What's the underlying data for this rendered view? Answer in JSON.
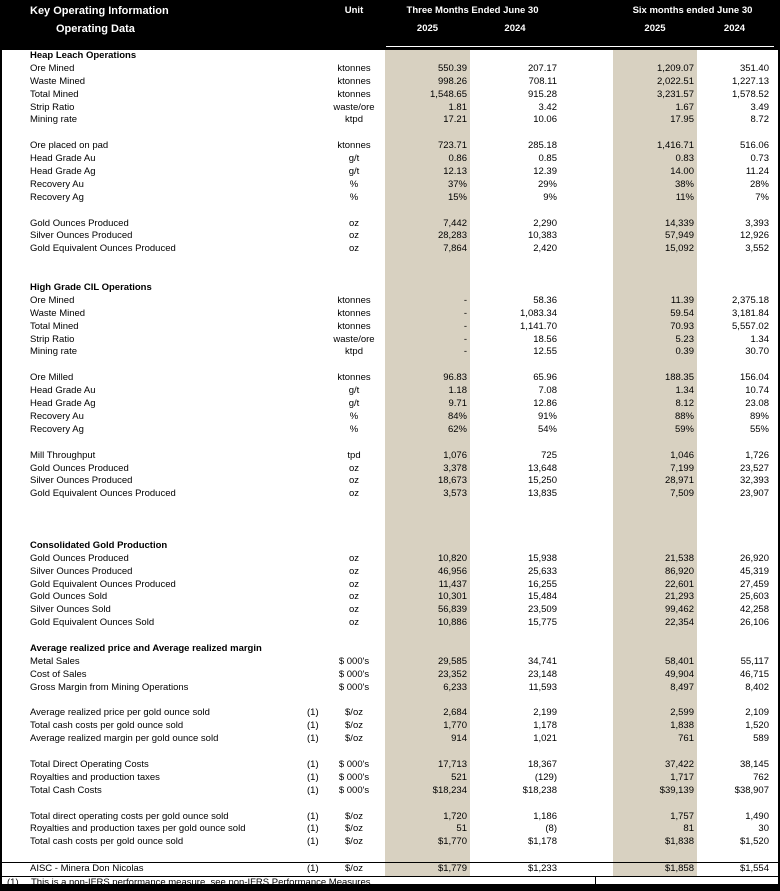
{
  "header": {
    "title": "Key Operating Information",
    "subtitle": "Operating Data",
    "unit_label": "Unit",
    "group1": "Three Months Ended June 30",
    "group2": "Six months ended June 30",
    "years": [
      "2025",
      "2024",
      "2025",
      "2024"
    ]
  },
  "colors": {
    "header_bg": "#000000",
    "header_text": "#ffffff",
    "highlight_column": "#d8d1c1"
  },
  "table": {
    "columns": [
      "Label",
      "Note",
      "Unit",
      "Three Months Ended June 30 2025",
      "Three Months Ended June 30 2024",
      "Six months ended June 30 2025",
      "Six months ended June 30 2024"
    ],
    "rows": [
      {
        "type": "section",
        "label": "Heap Leach Operations"
      },
      {
        "type": "data",
        "label": "Ore Mined",
        "unit": "ktonnes",
        "v": [
          "550.39",
          "207.17",
          "1,209.07",
          "351.40"
        ]
      },
      {
        "type": "data",
        "label": "Waste Mined",
        "unit": "ktonnes",
        "v": [
          "998.26",
          "708.11",
          "2,022.51",
          "1,227.13"
        ]
      },
      {
        "type": "data",
        "label": "Total Mined",
        "unit": "ktonnes",
        "v": [
          "1,548.65",
          "915.28",
          "3,231.57",
          "1,578.52"
        ]
      },
      {
        "type": "data",
        "label": "Strip Ratio",
        "unit": "waste/ore",
        "v": [
          "1.81",
          "3.42",
          "1.67",
          "3.49"
        ]
      },
      {
        "type": "data",
        "label": "Mining rate",
        "unit": "ktpd",
        "v": [
          "17.21",
          "10.06",
          "17.95",
          "8.72"
        ]
      },
      {
        "type": "blank"
      },
      {
        "type": "data",
        "label": "Ore placed on pad",
        "unit": "ktonnes",
        "v": [
          "723.71",
          "285.18",
          "1,416.71",
          "516.06"
        ]
      },
      {
        "type": "data",
        "label": "Head Grade Au",
        "unit": "g/t",
        "v": [
          "0.86",
          "0.85",
          "0.83",
          "0.73"
        ]
      },
      {
        "type": "data",
        "label": "Head Grade Ag",
        "unit": "g/t",
        "v": [
          "12.13",
          "12.39",
          "14.00",
          "11.24"
        ]
      },
      {
        "type": "data",
        "label": "Recovery Au",
        "unit": "%",
        "v": [
          "37%",
          "29%",
          "38%",
          "28%"
        ]
      },
      {
        "type": "data",
        "label": "Recovery Ag",
        "unit": "%",
        "v": [
          "15%",
          "9%",
          "11%",
          "7%"
        ]
      },
      {
        "type": "blank"
      },
      {
        "type": "data",
        "label": "Gold Ounces Produced",
        "unit": "oz",
        "v": [
          "7,442",
          "2,290",
          "14,339",
          "3,393"
        ]
      },
      {
        "type": "data",
        "label": "Silver Ounces Produced",
        "unit": "oz",
        "v": [
          "28,283",
          "10,383",
          "57,949",
          "12,926"
        ]
      },
      {
        "type": "data",
        "label": "Gold Equivalent Ounces Produced",
        "unit": "oz",
        "v": [
          "7,864",
          "2,420",
          "15,092",
          "3,552"
        ]
      },
      {
        "type": "blank"
      },
      {
        "type": "blank"
      },
      {
        "type": "section",
        "label": "High Grade CIL Operations"
      },
      {
        "type": "data",
        "label": "Ore Mined",
        "unit": "ktonnes",
        "v": [
          "-",
          "58.36",
          "11.39",
          "2,375.18"
        ]
      },
      {
        "type": "data",
        "label": "Waste Mined",
        "unit": "ktonnes",
        "v": [
          "-",
          "1,083.34",
          "59.54",
          "3,181.84"
        ]
      },
      {
        "type": "data",
        "label": "Total Mined",
        "unit": "ktonnes",
        "v": [
          "-",
          "1,141.70",
          "70.93",
          "5,557.02"
        ]
      },
      {
        "type": "data",
        "label": "Strip Ratio",
        "unit": "waste/ore",
        "v": [
          "-",
          "18.56",
          "5.23",
          "1.34"
        ]
      },
      {
        "type": "data",
        "label": "Mining rate",
        "unit": "ktpd",
        "v": [
          "-",
          "12.55",
          "0.39",
          "30.70"
        ]
      },
      {
        "type": "blank"
      },
      {
        "type": "data",
        "label": "Ore Milled",
        "unit": "ktonnes",
        "v": [
          "96.83",
          "65.96",
          "188.35",
          "156.04"
        ]
      },
      {
        "type": "data",
        "label": "Head Grade Au",
        "unit": "g/t",
        "v": [
          "1.18",
          "7.08",
          "1.34",
          "10.74"
        ]
      },
      {
        "type": "data",
        "label": "Head Grade Ag",
        "unit": "g/t",
        "v": [
          "9.71",
          "12.86",
          "8.12",
          "23.08"
        ]
      },
      {
        "type": "data",
        "label": "Recovery Au",
        "unit": "%",
        "v": [
          "84%",
          "91%",
          "88%",
          "89%"
        ]
      },
      {
        "type": "data",
        "label": "Recovery Ag",
        "unit": "%",
        "v": [
          "62%",
          "54%",
          "59%",
          "55%"
        ]
      },
      {
        "type": "blank"
      },
      {
        "type": "data",
        "label": "Mill Throughput",
        "unit": "tpd",
        "v": [
          "1,076",
          "725",
          "1,046",
          "1,726"
        ]
      },
      {
        "type": "data",
        "label": "Gold Ounces Produced",
        "unit": "oz",
        "v": [
          "3,378",
          "13,648",
          "7,199",
          "23,527"
        ]
      },
      {
        "type": "data",
        "label": "Silver Ounces Produced",
        "unit": "oz",
        "v": [
          "18,673",
          "15,250",
          "28,971",
          "32,393"
        ]
      },
      {
        "type": "data",
        "label": "Gold Equivalent Ounces Produced",
        "unit": "oz",
        "v": [
          "3,573",
          "13,835",
          "7,509",
          "23,907"
        ]
      },
      {
        "type": "blank"
      },
      {
        "type": "blank"
      },
      {
        "type": "blank"
      },
      {
        "type": "section",
        "label": "Consolidated Gold Production"
      },
      {
        "type": "data",
        "label": "Gold Ounces Produced",
        "unit": "oz",
        "v": [
          "10,820",
          "15,938",
          "21,538",
          "26,920"
        ]
      },
      {
        "type": "data",
        "label": "Silver Ounces Produced",
        "unit": "oz",
        "v": [
          "46,956",
          "25,633",
          "86,920",
          "45,319"
        ]
      },
      {
        "type": "data",
        "label": "Gold Equivalent Ounces Produced",
        "unit": "oz",
        "v": [
          "11,437",
          "16,255",
          "22,601",
          "27,459"
        ]
      },
      {
        "type": "data",
        "label": "Gold Ounces Sold",
        "unit": "oz",
        "v": [
          "10,301",
          "15,484",
          "21,293",
          "25,603"
        ]
      },
      {
        "type": "data",
        "label": "Silver Ounces Sold",
        "unit": "oz",
        "v": [
          "56,839",
          "23,509",
          "99,462",
          "42,258"
        ]
      },
      {
        "type": "data",
        "label": "Gold Equivalent Ounces Sold",
        "unit": "oz",
        "v": [
          "10,886",
          "15,775",
          "22,354",
          "26,106"
        ]
      },
      {
        "type": "blank"
      },
      {
        "type": "section",
        "label": "Average realized price and Average realized margin"
      },
      {
        "type": "data",
        "label": "Metal Sales",
        "unit": "$ 000's",
        "v": [
          "29,585",
          "34,741",
          "58,401",
          "55,117"
        ]
      },
      {
        "type": "data",
        "label": "Cost of Sales",
        "unit": "$ 000's",
        "v": [
          "23,352",
          "23,148",
          "49,904",
          "46,715"
        ]
      },
      {
        "type": "data",
        "label": "Gross Margin from Mining Operations",
        "unit": "$ 000's",
        "v": [
          "6,233",
          "11,593",
          "8,497",
          "8,402"
        ]
      },
      {
        "type": "blank"
      },
      {
        "type": "data",
        "label": "Average realized price per gold ounce sold",
        "note": "(1)",
        "unit": "$/oz",
        "v": [
          "2,684",
          "2,199",
          "2,599",
          "2,109"
        ]
      },
      {
        "type": "data",
        "label": "Total cash costs per gold ounce sold",
        "note": "(1)",
        "unit": "$/oz",
        "v": [
          "1,770",
          "1,178",
          "1,838",
          "1,520"
        ]
      },
      {
        "type": "data",
        "label": "Average realized margin per gold ounce sold",
        "note": "(1)",
        "unit": "$/oz",
        "v": [
          "914",
          "1,021",
          "761",
          "589"
        ]
      },
      {
        "type": "blank"
      },
      {
        "type": "data",
        "label": "Total Direct Operating Costs",
        "note": "(1)",
        "unit": "$ 000's",
        "v": [
          "17,713",
          "18,367",
          "37,422",
          "38,145"
        ]
      },
      {
        "type": "data",
        "label": "Royalties and production taxes",
        "note": "(1)",
        "unit": "$ 000's",
        "v": [
          "521",
          "(129)",
          "1,717",
          "762"
        ]
      },
      {
        "type": "data",
        "label": "Total Cash Costs",
        "note": "(1)",
        "unit": "$ 000's",
        "v": [
          "$18,234",
          "$18,238",
          "$39,139",
          "$38,907"
        ]
      },
      {
        "type": "blank"
      },
      {
        "type": "data",
        "label": "Total direct operating costs per gold ounce sold",
        "note": "(1)",
        "unit": "$/oz",
        "v": [
          "1,720",
          "1,186",
          "1,757",
          "1,490"
        ]
      },
      {
        "type": "data",
        "label": "Royalties and production taxes per gold ounce sold",
        "note": "(1)",
        "unit": "$/oz",
        "v": [
          "51",
          "(8)",
          "81",
          "30"
        ]
      },
      {
        "type": "data",
        "label": "Total cash costs per gold ounce sold",
        "note": "(1)",
        "unit": "$/oz",
        "v": [
          "$1,770",
          "$1,178",
          "$1,838",
          "$1,520"
        ]
      },
      {
        "type": "blank"
      },
      {
        "type": "data",
        "label": "AISC - Minera Don Nicolas",
        "note": "(1)",
        "unit": "$/oz",
        "v": [
          "$1,779",
          "$1,233",
          "$1,858",
          "$1,554"
        ],
        "rule_above": true
      }
    ]
  },
  "footnote": {
    "marker": "(1)",
    "text": "This is a non-IFRS performance measure, see non-IFRS Performance Measures"
  }
}
